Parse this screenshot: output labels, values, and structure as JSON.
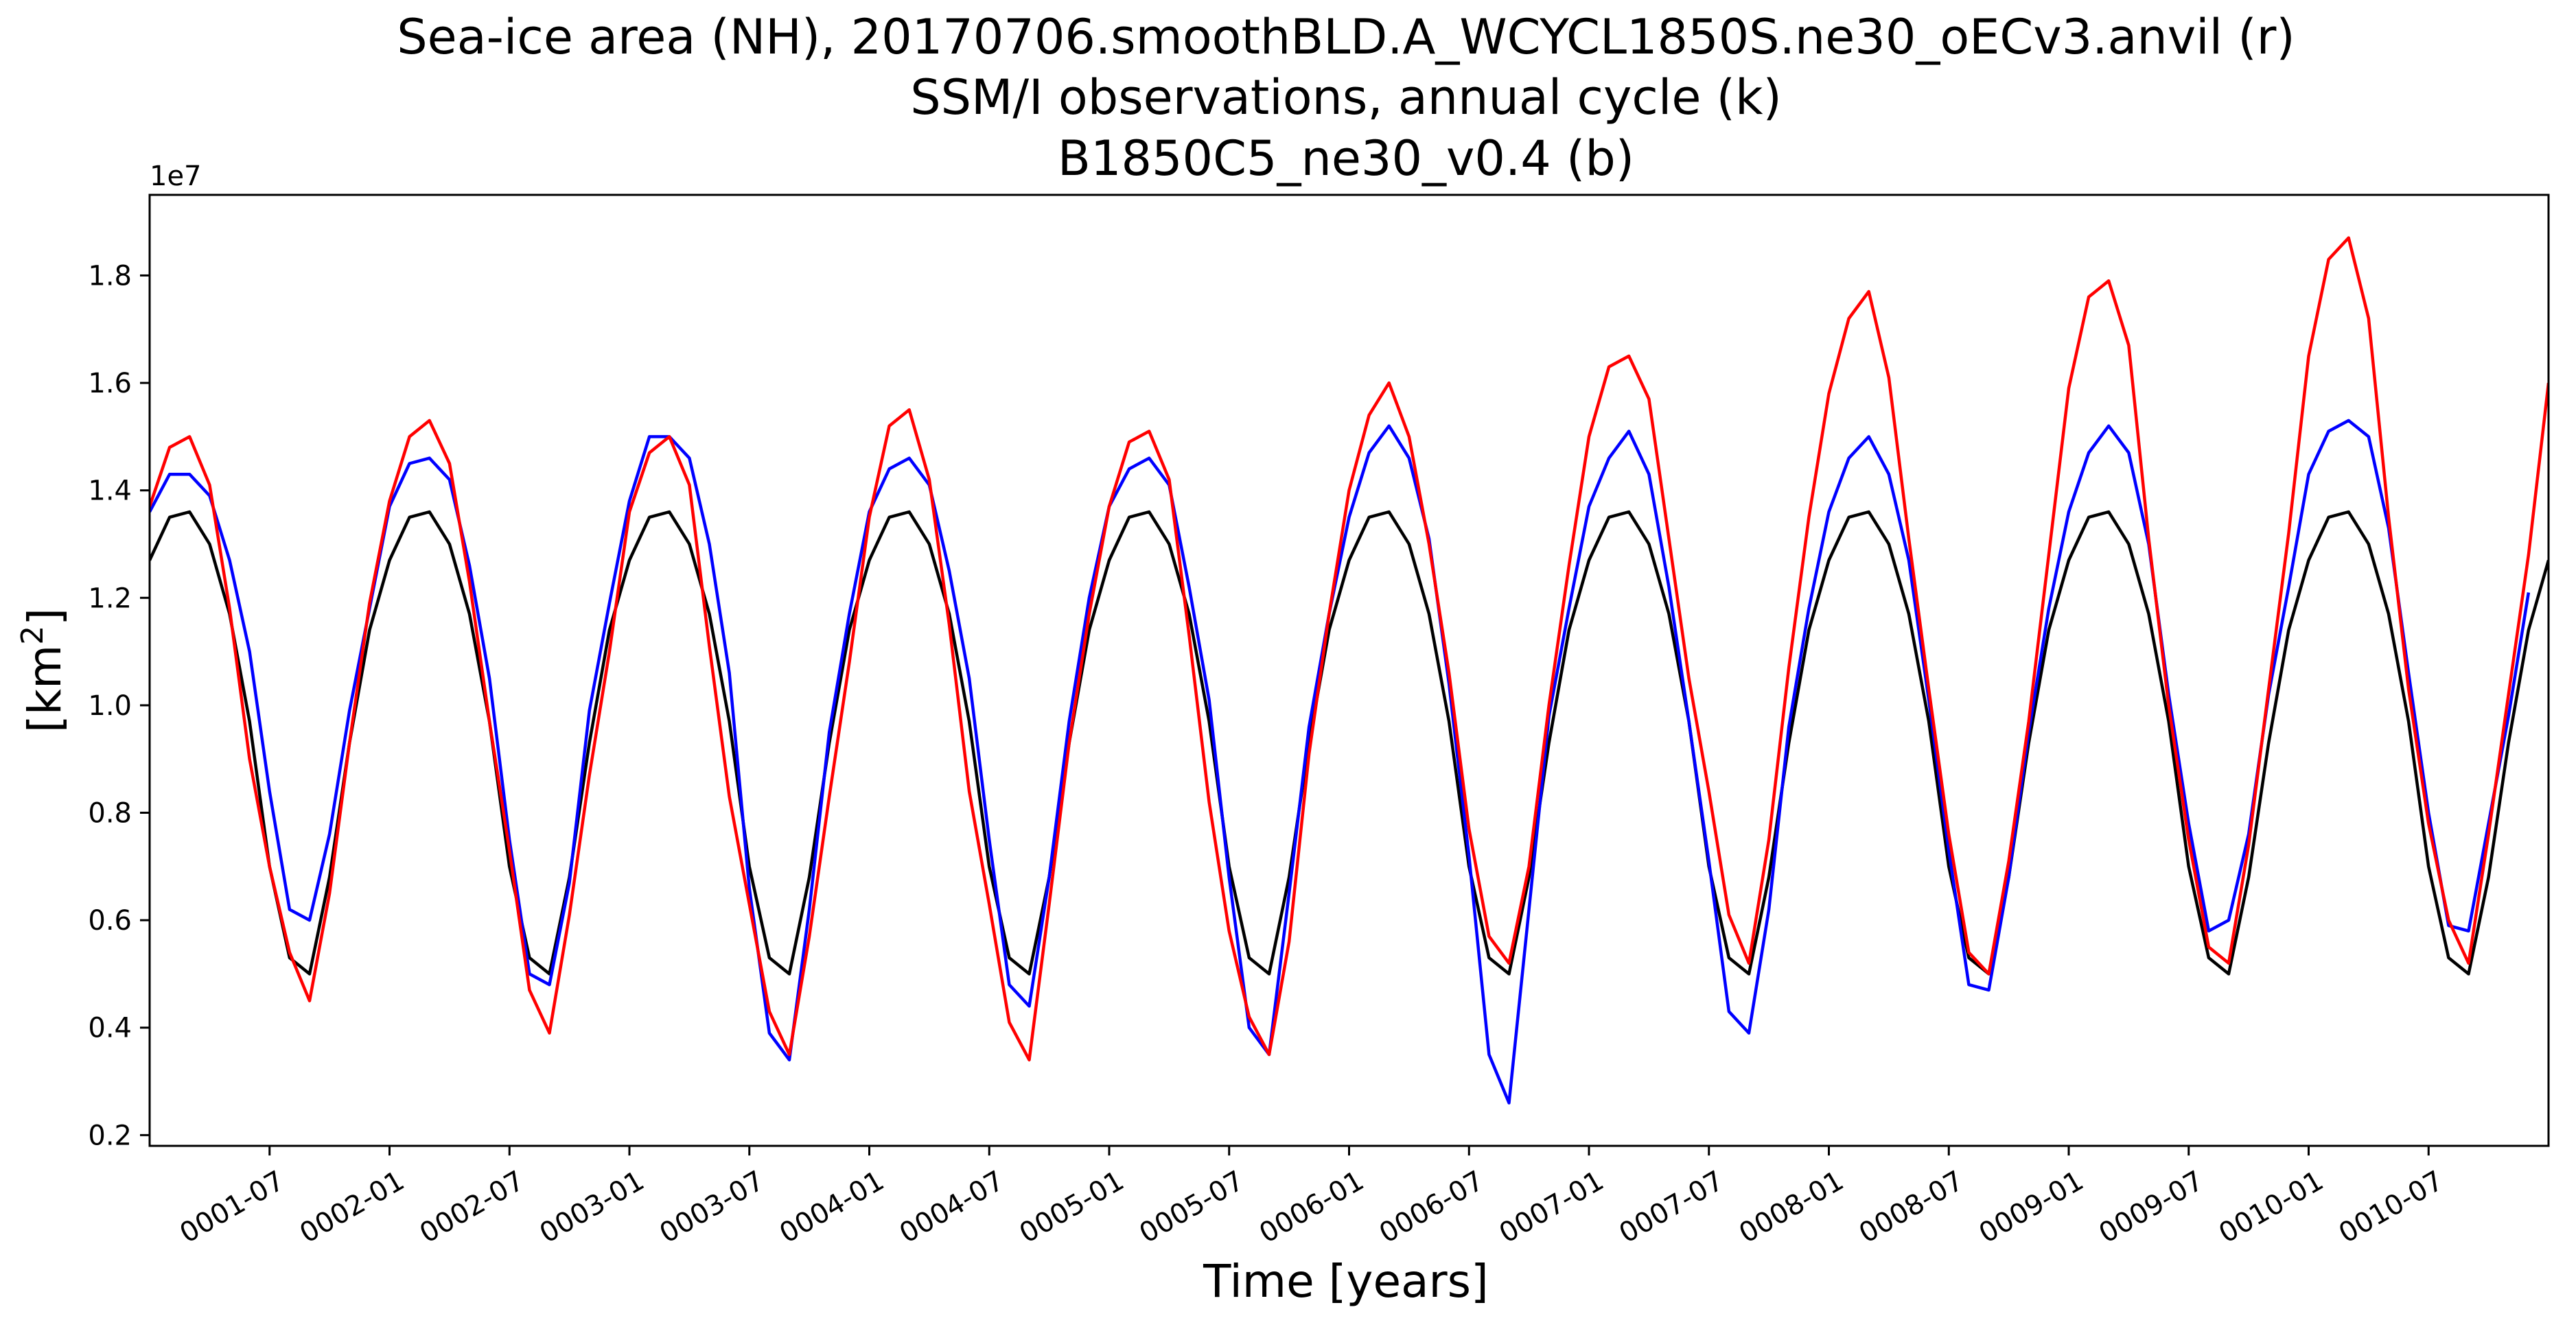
{
  "chart_data": {
    "type": "line",
    "title_lines": [
      "Sea-ice area (NH), 20170706.smoothBLD.A_WCYCL1850S.ne30_oECv3.anvil (r)",
      "SSM/I observations, annual cycle (k)",
      "B1850C5_ne30_v0.4 (b)"
    ],
    "xlabel": "Time [years]",
    "ylabel_base": "[km",
    "ylabel_sup": "2",
    "ylabel_close": "]",
    "offset_label": "1e7",
    "xlim": [
      1.0,
      11.0
    ],
    "ylim": [
      0.18,
      1.95
    ],
    "yticks": [
      0.2,
      0.4,
      0.6,
      0.8,
      1.0,
      1.2,
      1.4,
      1.6,
      1.8
    ],
    "ytick_labels": [
      "0.2",
      "0.4",
      "0.6",
      "0.8",
      "1.0",
      "1.2",
      "1.4",
      "1.6",
      "1.8"
    ],
    "xticks": [
      1.5,
      2.0,
      2.5,
      3.0,
      3.5,
      4.0,
      4.5,
      5.0,
      5.5,
      6.0,
      6.5,
      7.0,
      7.5,
      8.0,
      8.5,
      9.0,
      9.5,
      10.0,
      10.5
    ],
    "xtick_labels": [
      "0001-07",
      "0002-01",
      "0002-07",
      "0003-01",
      "0003-07",
      "0004-01",
      "0004-07",
      "0005-01",
      "0005-07",
      "0006-01",
      "0006-07",
      "0007-01",
      "0007-07",
      "0008-01",
      "0008-07",
      "0009-01",
      "0009-07",
      "0010-01",
      "0010-07"
    ],
    "series": [
      {
        "name": "SSM/I observations, annual cycle (k)",
        "color": "#000000",
        "start_year": 1.0,
        "step": 0.0833333,
        "values": [
          1.27,
          1.35,
          1.36,
          1.3,
          1.17,
          0.97,
          0.7,
          0.53,
          0.5,
          0.68,
          0.93,
          1.14,
          1.27,
          1.35,
          1.36,
          1.3,
          1.17,
          0.97,
          0.7,
          0.53,
          0.5,
          0.68,
          0.93,
          1.14,
          1.27,
          1.35,
          1.36,
          1.3,
          1.17,
          0.97,
          0.7,
          0.53,
          0.5,
          0.68,
          0.93,
          1.14,
          1.27,
          1.35,
          1.36,
          1.3,
          1.17,
          0.97,
          0.7,
          0.53,
          0.5,
          0.68,
          0.93,
          1.14,
          1.27,
          1.35,
          1.36,
          1.3,
          1.17,
          0.97,
          0.7,
          0.53,
          0.5,
          0.68,
          0.93,
          1.14,
          1.27,
          1.35,
          1.36,
          1.3,
          1.17,
          0.97,
          0.7,
          0.53,
          0.5,
          0.68,
          0.93,
          1.14,
          1.27,
          1.35,
          1.36,
          1.3,
          1.17,
          0.97,
          0.7,
          0.53,
          0.5,
          0.68,
          0.93,
          1.14,
          1.27,
          1.35,
          1.36,
          1.3,
          1.17,
          0.97,
          0.7,
          0.53,
          0.5,
          0.68,
          0.93,
          1.14,
          1.27,
          1.35,
          1.36,
          1.3,
          1.17,
          0.97,
          0.7,
          0.53,
          0.5,
          0.68,
          0.93,
          1.14,
          1.27,
          1.35,
          1.36,
          1.3,
          1.17,
          0.97,
          0.7,
          0.53,
          0.5,
          0.68,
          0.93,
          1.14,
          1.27
        ]
      },
      {
        "name": "B1850C5_ne30_v0.4 (b)",
        "color": "#0000ff",
        "start_year": 1.0,
        "step": 0.0833333,
        "values": [
          1.36,
          1.43,
          1.43,
          1.39,
          1.27,
          1.1,
          0.84,
          0.62,
          0.6,
          0.76,
          0.99,
          1.18,
          1.37,
          1.45,
          1.46,
          1.42,
          1.26,
          1.05,
          0.75,
          0.5,
          0.48,
          0.67,
          0.99,
          1.19,
          1.38,
          1.5,
          1.5,
          1.46,
          1.3,
          1.06,
          0.66,
          0.39,
          0.34,
          0.62,
          0.95,
          1.17,
          1.36,
          1.44,
          1.46,
          1.41,
          1.25,
          1.05,
          0.75,
          0.48,
          0.44,
          0.68,
          0.97,
          1.2,
          1.37,
          1.44,
          1.46,
          1.41,
          1.22,
          1.01,
          0.68,
          0.4,
          0.35,
          0.65,
          0.96,
          1.17,
          1.35,
          1.47,
          1.52,
          1.46,
          1.31,
          1.04,
          0.72,
          0.35,
          0.26,
          0.62,
          0.98,
          1.18,
          1.37,
          1.46,
          1.51,
          1.43,
          1.22,
          0.97,
          0.71,
          0.43,
          0.39,
          0.62,
          0.96,
          1.18,
          1.36,
          1.46,
          1.5,
          1.43,
          1.27,
          1.01,
          0.73,
          0.48,
          0.47,
          0.68,
          0.95,
          1.18,
          1.36,
          1.47,
          1.52,
          1.47,
          1.3,
          1.02,
          0.78,
          0.58,
          0.6,
          0.76,
          1.02,
          1.22,
          1.43,
          1.51,
          1.53,
          1.5,
          1.33,
          1.06,
          0.8,
          0.59,
          0.58,
          0.78,
          0.98,
          1.21
        ]
      },
      {
        "name": "20170706.smoothBLD.A_WCYCL1850S.ne30_oECv3.anvil (r)",
        "color": "#ff0000",
        "start_year": 1.0,
        "step": 0.0833333,
        "values": [
          1.37,
          1.48,
          1.5,
          1.41,
          1.18,
          0.9,
          0.7,
          0.54,
          0.45,
          0.65,
          0.93,
          1.19,
          1.38,
          1.5,
          1.53,
          1.45,
          1.23,
          0.97,
          0.73,
          0.47,
          0.39,
          0.61,
          0.87,
          1.1,
          1.36,
          1.47,
          1.5,
          1.41,
          1.11,
          0.83,
          0.63,
          0.43,
          0.35,
          0.57,
          0.83,
          1.08,
          1.35,
          1.52,
          1.55,
          1.42,
          1.15,
          0.84,
          0.63,
          0.41,
          0.34,
          0.63,
          0.93,
          1.17,
          1.37,
          1.49,
          1.51,
          1.42,
          1.13,
          0.82,
          0.58,
          0.42,
          0.35,
          0.56,
          0.91,
          1.17,
          1.4,
          1.54,
          1.6,
          1.5,
          1.3,
          1.06,
          0.77,
          0.57,
          0.52,
          0.7,
          1.0,
          1.26,
          1.5,
          1.63,
          1.65,
          1.57,
          1.31,
          1.05,
          0.84,
          0.61,
          0.52,
          0.75,
          1.07,
          1.35,
          1.58,
          1.72,
          1.77,
          1.61,
          1.31,
          1.03,
          0.76,
          0.54,
          0.5,
          0.71,
          0.97,
          1.28,
          1.59,
          1.76,
          1.79,
          1.67,
          1.31,
          1.0,
          0.75,
          0.55,
          0.52,
          0.74,
          1.03,
          1.32,
          1.65,
          1.83,
          1.87,
          1.72,
          1.35,
          1.03,
          0.78,
          0.6,
          0.52,
          0.76,
          1.02,
          1.28,
          1.6
        ]
      }
    ]
  }
}
